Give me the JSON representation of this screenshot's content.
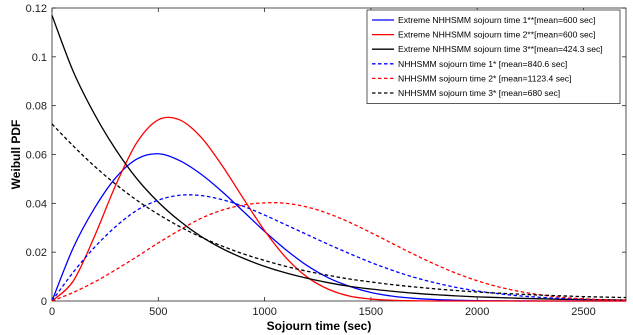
{
  "chart_data": {
    "type": "line",
    "title": "",
    "xlabel": "Sojourn time (sec)",
    "ylabel": "Weibull PDF",
    "xlim": [
      0,
      2700
    ],
    "ylim": [
      0,
      0.12
    ],
    "xticks": [
      0,
      500,
      1000,
      1500,
      2000,
      2500
    ],
    "yticks": [
      0,
      0.02,
      0.04,
      0.06,
      0.08,
      0.1,
      0.12
    ],
    "xtick_labels": [
      "0",
      "500",
      "1000",
      "1500",
      "2000",
      "2500"
    ],
    "ytick_labels": [
      "0",
      "0.02",
      "0.04",
      "0.06",
      "0.08",
      "0.1",
      "0.12"
    ],
    "grid": false,
    "legend_position": "top-right",
    "x": [
      0,
      100,
      200,
      300,
      400,
      500,
      600,
      700,
      800,
      900,
      1000,
      1100,
      1200,
      1300,
      1400,
      1500,
      1600,
      1700,
      1800,
      1900,
      2000,
      2100,
      2200,
      2300,
      2400,
      2500,
      2600,
      2700
    ],
    "series": [
      {
        "name": "Extreme NHHSMM sojourn time 1**[mean=600 sec]",
        "color": "#0000ff",
        "dash": "solid",
        "values": [
          0,
          0.0218,
          0.038,
          0.0505,
          0.0582,
          0.0603,
          0.0575,
          0.052,
          0.0448,
          0.0367,
          0.0285,
          0.021,
          0.0145,
          0.0095,
          0.006,
          0.0035,
          0.002,
          0.0011,
          0.0006,
          0.0003,
          0.00015,
          7e-05,
          3e-05,
          1e-05,
          0,
          0,
          0,
          0
        ]
      },
      {
        "name": "Extreme NHHSMM sojourn time 2**[mean=600 sec]",
        "color": "#ff0000",
        "dash": "solid",
        "values": [
          0,
          0.0082,
          0.0265,
          0.0475,
          0.065,
          0.0742,
          0.0742,
          0.0672,
          0.0555,
          0.042,
          0.0288,
          0.0178,
          0.0098,
          0.0048,
          0.002,
          0.0008,
          0.0003,
          0.0001,
          0,
          0,
          0,
          0,
          0,
          0,
          0,
          0,
          0,
          0
        ]
      },
      {
        "name": "Extreme NHHSMM sojourn time 3**[mean=424.3 sec]",
        "color": "#000000",
        "dash": "solid",
        "values": [
          0.117,
          0.094,
          0.0765,
          0.062,
          0.05,
          0.0405,
          0.0328,
          0.0265,
          0.0215,
          0.0175,
          0.0142,
          0.0115,
          0.0093,
          0.0075,
          0.006,
          0.0049,
          0.004,
          0.0032,
          0.0026,
          0.0021,
          0.0017,
          0.0014,
          0.0011,
          0.0009,
          0.0007,
          0.0006,
          0.0005,
          0.0004
        ]
      },
      {
        "name": "NHHSMM sojourn time 1* [mean=840.6 sec]",
        "color": "#0000ff",
        "dash": "dashed",
        "values": [
          0,
          0.0118,
          0.022,
          0.0305,
          0.0372,
          0.0413,
          0.0433,
          0.0432,
          0.0415,
          0.0388,
          0.0352,
          0.0312,
          0.0272,
          0.0232,
          0.0194,
          0.0158,
          0.0126,
          0.0098,
          0.0075,
          0.0056,
          0.0041,
          0.003,
          0.0021,
          0.0015,
          0.001,
          0.0007,
          0.0005,
          0.0003
        ]
      },
      {
        "name": "NHHSMM sojourn time 2* [mean=1123.4 sec]",
        "color": "#ff0000",
        "dash": "dashed",
        "values": [
          0,
          0.0035,
          0.0078,
          0.0128,
          0.0182,
          0.0238,
          0.029,
          0.0338,
          0.0372,
          0.0393,
          0.0402,
          0.04,
          0.0385,
          0.0358,
          0.0322,
          0.028,
          0.0236,
          0.0192,
          0.0151,
          0.0114,
          0.0083,
          0.0058,
          0.0039,
          0.0025,
          0.0015,
          0.0009,
          0.0005,
          0.0003
        ]
      },
      {
        "name": "NHHSMM sojourn time 3* [mean=680 sec]",
        "color": "#000000",
        "dash": "dashed",
        "values": [
          0.0725,
          0.0635,
          0.0552,
          0.0478,
          0.0412,
          0.0355,
          0.0305,
          0.0262,
          0.0225,
          0.0193,
          0.0166,
          0.0142,
          0.0122,
          0.0105,
          0.009,
          0.0078,
          0.0067,
          0.0058,
          0.005,
          0.0043,
          0.0037,
          0.0032,
          0.0028,
          0.0024,
          0.0021,
          0.0018,
          0.0016,
          0.0014
        ]
      }
    ]
  }
}
